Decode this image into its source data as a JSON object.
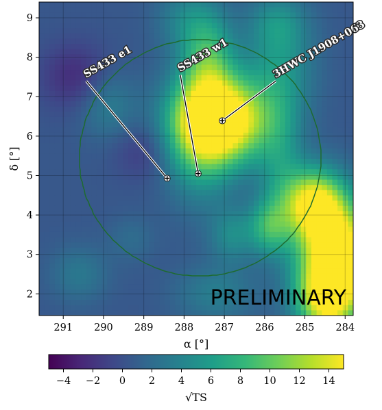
{
  "chart_data": {
    "type": "heatmap",
    "title": "",
    "xlabel": "α [°]",
    "ylabel": "δ [°]",
    "colorbar_label": "√TS",
    "watermark": "PRELIMINARY",
    "xlim": [
      291.6,
      283.8
    ],
    "ylim": [
      1.45,
      9.4
    ],
    "x_ticks": [
      291,
      290,
      289,
      288,
      287,
      286,
      285,
      284
    ],
    "x_tick_labels": [
      "291",
      "290",
      "289",
      "288",
      "287",
      "286",
      "285",
      "284"
    ],
    "y_ticks": [
      2,
      3,
      4,
      5,
      6,
      7,
      8,
      9
    ],
    "y_tick_labels": [
      "2",
      "3",
      "4",
      "5",
      "6",
      "7",
      "8",
      "9"
    ],
    "colorbar_range": [
      -5,
      15
    ],
    "colorbar_ticks": [
      -4,
      -2,
      0,
      2,
      4,
      6,
      8,
      10,
      12,
      14
    ],
    "colorbar_tick_labels": [
      "−4",
      "−2",
      "0",
      "2",
      "4",
      "6",
      "8",
      "10",
      "12",
      "14"
    ],
    "colormap": "viridis",
    "colormap_colors": [
      "#440154",
      "#482878",
      "#3e4989",
      "#31688e",
      "#26828e",
      "#1f9e89",
      "#35b779",
      "#6ece58",
      "#b5de2b",
      "#fde725"
    ],
    "grid": true,
    "sources": [
      {
        "name": "SS433 e1",
        "ra": 288.42,
        "dec": 4.93
      },
      {
        "name": "SS433 w1",
        "ra": 287.65,
        "dec": 5.05
      },
      {
        "name": "3HWC J1908+063",
        "ra": 287.05,
        "dec": 6.39
      }
    ],
    "roi_circle": {
      "center_ra": 287.6,
      "center_dec": 5.45,
      "radius_deg": 3.0,
      "color": "#1e6b2f"
    },
    "map_components": [
      {
        "ra": 287.05,
        "dec": 6.4,
        "amplitude": 17.0,
        "sigma_ra": 0.8,
        "sigma_dec": 0.75
      },
      {
        "ra": 287.6,
        "dec": 6.0,
        "amplitude": 7.0,
        "sigma_ra": 0.6,
        "sigma_dec": 1.1
      },
      {
        "ra": 287.4,
        "dec": 8.0,
        "amplitude": 7.0,
        "sigma_ra": 0.45,
        "sigma_dec": 0.85
      },
      {
        "ra": 288.0,
        "dec": 9.0,
        "amplitude": 3.0,
        "sigma_ra": 0.5,
        "sigma_dec": 0.6
      },
      {
        "ra": 285.6,
        "dec": 7.8,
        "amplitude": 4.5,
        "sigma_ra": 0.6,
        "sigma_dec": 1.0
      },
      {
        "ra": 285.7,
        "dec": 8.9,
        "amplitude": 3.0,
        "sigma_ra": 0.5,
        "sigma_dec": 0.5
      },
      {
        "ra": 285.6,
        "dec": 5.2,
        "amplitude": 4.0,
        "sigma_ra": 0.4,
        "sigma_dec": 1.2
      },
      {
        "ra": 284.2,
        "dec": 2.9,
        "amplitude": 19.0,
        "sigma_ra": 0.65,
        "sigma_dec": 1.0
      },
      {
        "ra": 284.8,
        "dec": 4.3,
        "amplitude": 13.0,
        "sigma_ra": 0.5,
        "sigma_dec": 0.6
      },
      {
        "ra": 285.9,
        "dec": 3.7,
        "amplitude": 6.5,
        "sigma_ra": 0.35,
        "sigma_dec": 0.5
      },
      {
        "ra": 284.5,
        "dec": 1.8,
        "amplitude": 9.0,
        "sigma_ra": 0.5,
        "sigma_dec": 0.6
      },
      {
        "ra": 286.8,
        "dec": 3.5,
        "amplitude": 4.0,
        "sigma_ra": 0.4,
        "sigma_dec": 0.5
      },
      {
        "ra": 287.2,
        "dec": 2.0,
        "amplitude": 3.0,
        "sigma_ra": 0.7,
        "sigma_dec": 0.5
      },
      {
        "ra": 289.9,
        "dec": 6.8,
        "amplitude": 3.0,
        "sigma_ra": 0.5,
        "sigma_dec": 0.6
      },
      {
        "ra": 290.6,
        "dec": 2.5,
        "amplitude": 2.5,
        "sigma_ra": 0.5,
        "sigma_dec": 0.5
      },
      {
        "ra": 289.3,
        "dec": 3.4,
        "amplitude": 1.5,
        "sigma_ra": 0.4,
        "sigma_dec": 0.4
      },
      {
        "ra": 290.7,
        "dec": 7.5,
        "amplitude": -3.0,
        "sigma_ra": 0.6,
        "sigma_dec": 0.6
      },
      {
        "ra": 289.0,
        "dec": 5.6,
        "amplitude": -2.0,
        "sigma_ra": 0.5,
        "sigma_dec": 0.5
      }
    ],
    "map_baseline": 0.5
  }
}
